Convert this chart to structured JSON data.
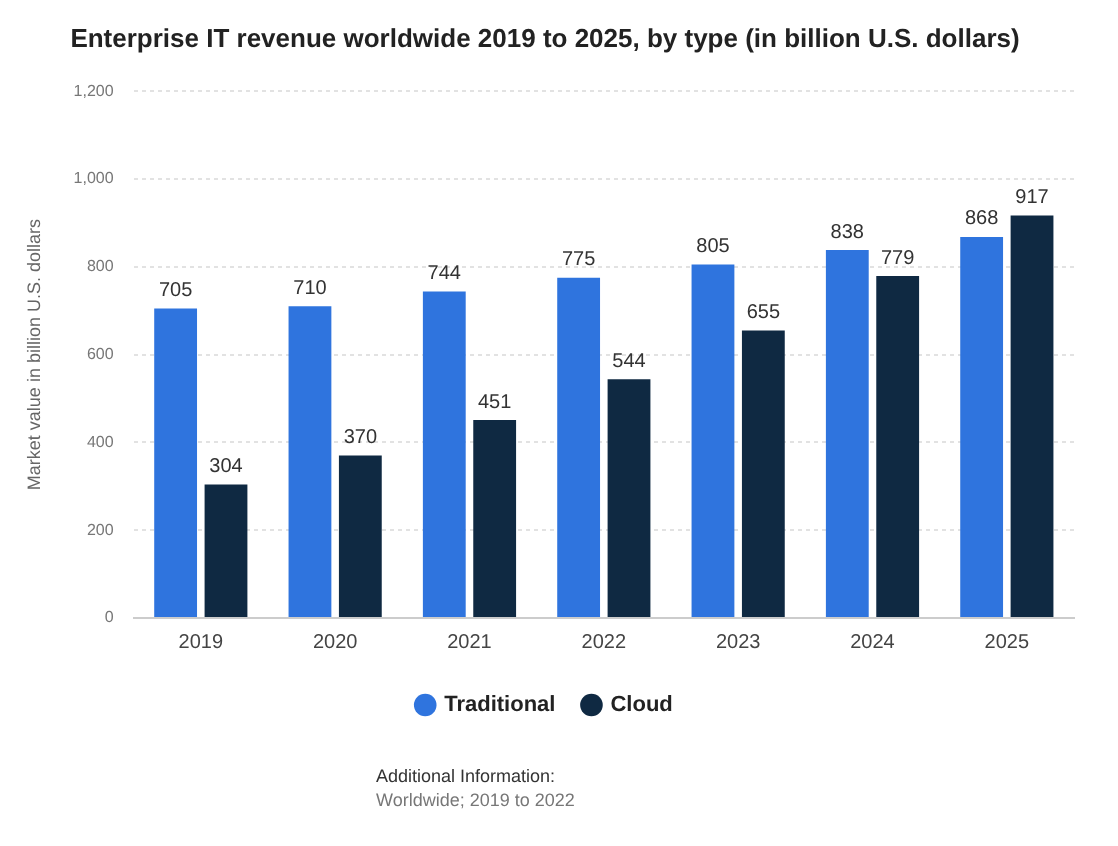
{
  "chart_data": {
    "type": "bar",
    "title": "Enterprise IT revenue worldwide 2019 to 2025, by type (in billion U.S. dollars)",
    "ylabel": "Market value in billion U.S. dollars",
    "categories": [
      "2019",
      "2020",
      "2021",
      "2022",
      "2023",
      "2024",
      "2025"
    ],
    "series": [
      {
        "name": "Traditional",
        "color": "#2f74de",
        "values": [
          705,
          710,
          744,
          775,
          805,
          838,
          868
        ]
      },
      {
        "name": "Cloud",
        "color": "#0f2942",
        "values": [
          304,
          370,
          451,
          544,
          655,
          779,
          917
        ]
      }
    ],
    "ylim": [
      0,
      1200
    ],
    "yticks": [
      0,
      {
        "value": 200,
        "label": "200"
      },
      {
        "value": 400,
        "label": "400"
      },
      {
        "value": 600,
        "label": "600"
      },
      {
        "value": 800,
        "label": "800"
      },
      {
        "value": 1000,
        "label": "1,000"
      },
      {
        "value": 1200,
        "label": "1,200"
      }
    ],
    "grid": "y",
    "legend": "bottom",
    "data_labels": true,
    "annotations": [
      "Additional Information:",
      "Worldwide; 2019 to 2022"
    ]
  }
}
